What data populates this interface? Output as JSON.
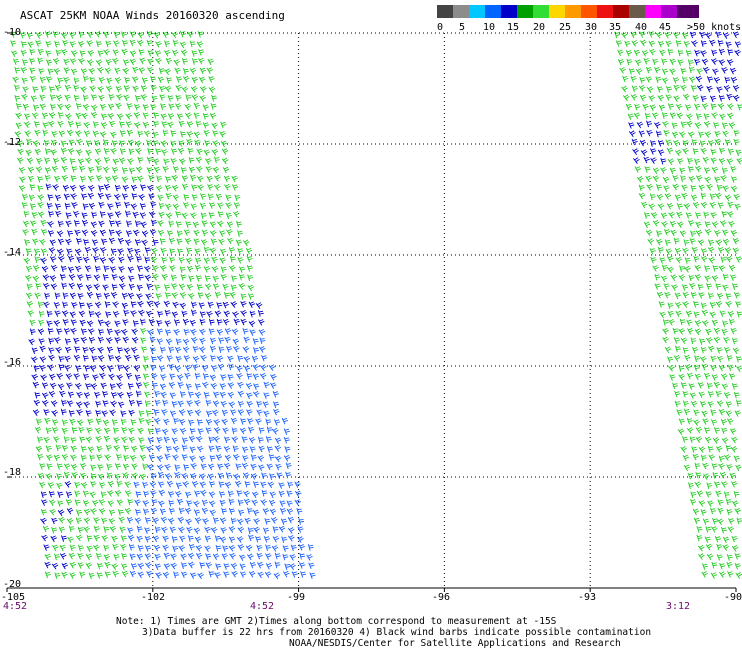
{
  "header": {
    "title": "ASCAT 25KM NOAA Winds 20160320 ascending"
  },
  "legend": {
    "colors": [
      "#444444",
      "#8c8c8c",
      "#00c8ff",
      "#0064ff",
      "#0000c8",
      "#00a000",
      "#33dd33",
      "#ffd700",
      "#ff9900",
      "#ff5500",
      "#ee1111",
      "#aa0000",
      "#6a5a4a",
      "#ff00ff",
      "#aa00cc",
      "#550066"
    ],
    "labels": [
      "0",
      "5",
      "10",
      "15",
      "20",
      "25",
      "30",
      "35",
      "40",
      "45",
      ">50 knots"
    ]
  },
  "map": {
    "lat_labels": [
      "-10",
      "-12",
      "-14",
      "-16",
      "-18",
      "-20"
    ],
    "lon_labels": [
      "-105",
      "-102",
      "-99",
      "-96",
      "-93",
      "-90"
    ],
    "time_labels": [
      "4:52",
      "4:52",
      "3:12"
    ],
    "barb_colors": {
      "green": "#22cc22",
      "blue": "#0000cc",
      "lightblue": "#1a60ff"
    }
  },
  "notes": {
    "line1": "Note: 1) Times are GMT 2)Times along bottom correspond to measurement at -15S",
    "line2": "3)Data buffer is 22 hrs from 20160320 4) Black wind barbs indicate possible contamination",
    "line3": "NOAA/NESDIS/Center for Satellite Applications and Research"
  }
}
